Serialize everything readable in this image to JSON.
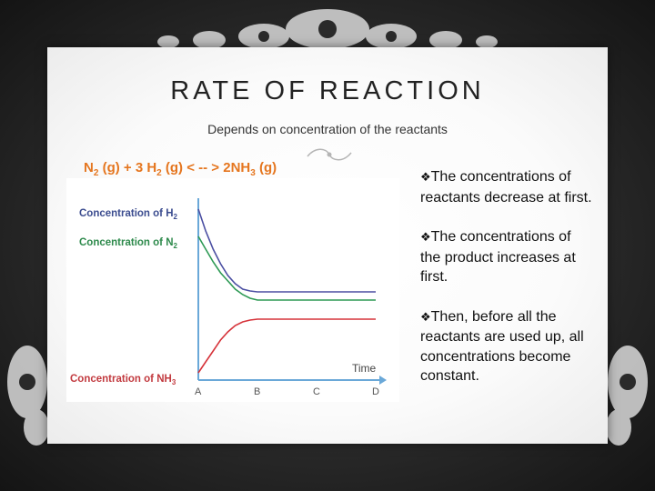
{
  "slide": {
    "title": "RATE OF REACTION",
    "subtitle": "Depends on concentration of the reactants",
    "equation": {
      "p1": "N",
      "s1": "2",
      "p2": " (g) + 3 H",
      "s2": "2",
      "p3": " (g) < -- > 2NH",
      "s3": "3",
      "p4": " (g)"
    },
    "bullet_symbol": "❖",
    "bullets": [
      "The concentrations of reactants decrease at first.",
      "The concentrations of the product increases at first.",
      "Then, before all the reactants are used up, all concentrations become constant."
    ]
  },
  "colors": {
    "equation": "#e5761f",
    "h2": "#4b4fa2",
    "n2": "#2e9a55",
    "nh3": "#d6333a",
    "axis": "#6aa8d8"
  },
  "chart_data": {
    "type": "line",
    "title": "",
    "xlabel": "Time",
    "ylabel": "",
    "x_ticks": [
      "A",
      "B",
      "C",
      "D"
    ],
    "series": [
      {
        "name": "Concentration of H",
        "sub": "2",
        "key": "h2",
        "x": [
          0,
          0.125,
          0.25,
          0.375,
          0.5,
          0.625,
          0.75,
          0.875,
          1,
          2,
          3
        ],
        "y": [
          0.94,
          0.82,
          0.72,
          0.64,
          0.575,
          0.53,
          0.5,
          0.49,
          0.485,
          0.485,
          0.485
        ]
      },
      {
        "name": "Concentration of N",
        "sub": "2",
        "key": "n2",
        "x": [
          0,
          0.125,
          0.25,
          0.375,
          0.5,
          0.625,
          0.75,
          0.875,
          1,
          2,
          3
        ],
        "y": [
          0.79,
          0.72,
          0.65,
          0.59,
          0.545,
          0.5,
          0.47,
          0.45,
          0.44,
          0.44,
          0.44
        ]
      },
      {
        "name": "Concentration of NH",
        "sub": "3",
        "key": "nh3",
        "x": [
          0,
          0.125,
          0.25,
          0.375,
          0.5,
          0.625,
          0.75,
          0.875,
          1,
          2,
          3
        ],
        "y": [
          0.04,
          0.1,
          0.16,
          0.22,
          0.265,
          0.3,
          0.32,
          0.33,
          0.335,
          0.335,
          0.335
        ]
      }
    ],
    "xlim": [
      0,
      3
    ],
    "ylim": [
      0,
      1
    ],
    "grid": false,
    "legend": "left"
  }
}
